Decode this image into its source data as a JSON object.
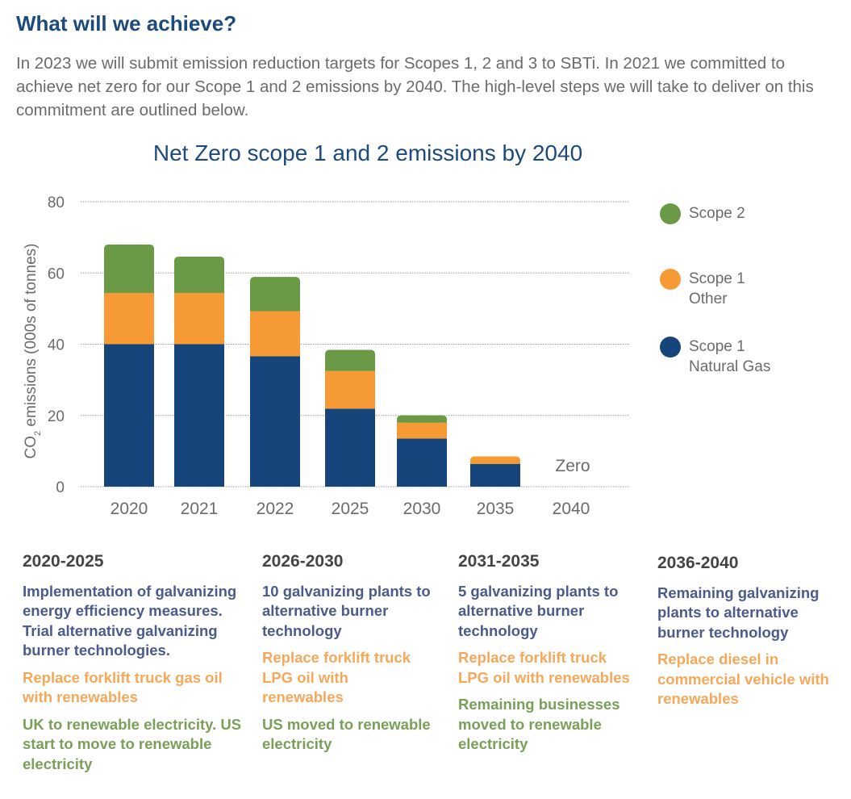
{
  "heading": "What will we achieve?",
  "intro": "In 2023 we will submit emission reduction targets for Scopes 1, 2 and 3 to SBTi. In 2021 we committed to achieve net zero for our Scope 1 and 2 emissions by 2040. The high-level steps we will take to deliver on this commitment are outlined below.",
  "chart_data": {
    "type": "bar",
    "stacked": true,
    "title": "Net Zero scope 1 and 2 emissions by 2040",
    "ylabel": "CO2 emissions (000s of tonnes)",
    "ylabel_main": "CO",
    "ylabel_sub": "2",
    "ylabel_rest": " emissions (000s of tonnes)",
    "ylim": [
      0,
      80
    ],
    "yticks": [
      "0",
      "20",
      "40",
      "60",
      "80"
    ],
    "grid": true,
    "legend_position": "right",
    "categories": [
      "2020",
      "2021",
      "2022",
      "2025",
      "2030",
      "2035",
      "2040"
    ],
    "series": [
      {
        "name": "Scope 1 Natural Gas",
        "color": "#15457a",
        "values": [
          40,
          40,
          36.6,
          21.9,
          13.5,
          6.4,
          0
        ]
      },
      {
        "name": "Scope 1 Other",
        "color": "#f69a35",
        "values": [
          14.4,
          14.4,
          12.7,
          10.6,
          4.5,
          2.1,
          0
        ]
      },
      {
        "name": "Scope 2",
        "color": "#6a9a45",
        "values": [
          13.6,
          10.2,
          9.6,
          5.9,
          2.0,
          0,
          0
        ]
      }
    ],
    "annotation": "Zero"
  },
  "legend": [
    {
      "line1": "Scope 2",
      "line2": "",
      "color": "#6a9a45"
    },
    {
      "line1": "Scope 1",
      "line2": "Other",
      "color": "#f69a35"
    },
    {
      "line1": "Scope 1",
      "line2": "Natural Gas",
      "color": "#15457a"
    }
  ],
  "columns": [
    {
      "period": "2020-2025",
      "blue": "Implementation of galvanizing energy efficiency measures. Trial alternative galvanizing burner technologies.",
      "orange": "Replace forklift truck gas oil with renewables",
      "green": "UK to renewable electricity. US start to move to renewable electricity"
    },
    {
      "period": "2026-2030",
      "blue": "10 galvanizing plants to alternative burner technology",
      "orange": "Replace forklift truck LPG oil with renewables",
      "green": "US moved to renewable electricity"
    },
    {
      "period": "2031-2035",
      "blue": "5 galvanizing plants to alternative burner technology",
      "orange": "Replace forklift truck LPG oil with renewables",
      "green": "Remaining businesses moved to renewable electricity"
    },
    {
      "period": "2036-2040",
      "blue": "Remaining galvanizing plants to alternative burner technology",
      "orange": "Replace diesel in commercial vehicle with renewables",
      "green": ""
    }
  ]
}
